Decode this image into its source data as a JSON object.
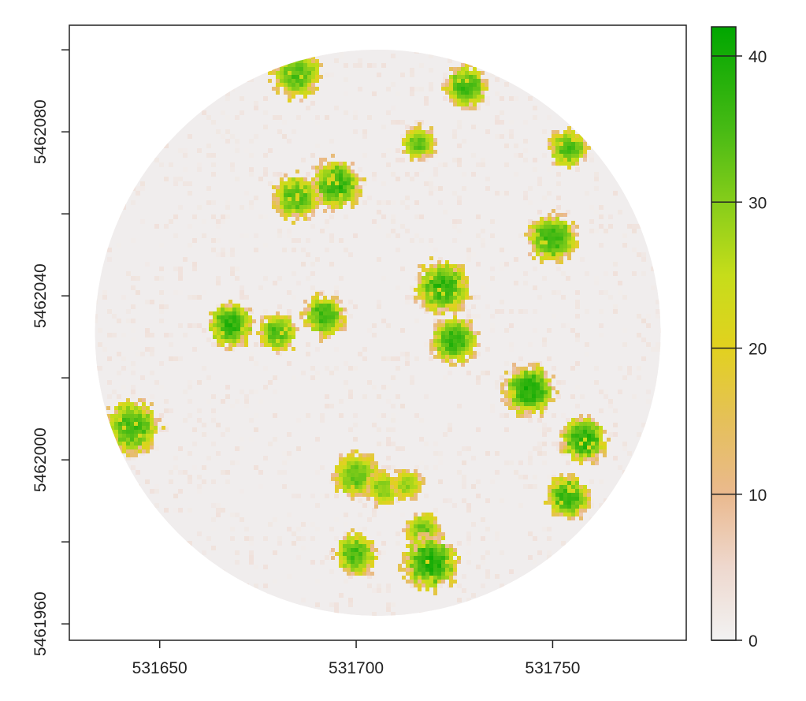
{
  "chart_data": {
    "type": "heatmap",
    "title": "",
    "xlabel": "",
    "ylabel": "",
    "xlim": [
      531627,
      531784
    ],
    "ylim": [
      5461956,
      5462106
    ],
    "x_ticks": [
      531650,
      531700,
      531750
    ],
    "y_ticks": [
      5461960,
      5462000,
      5462040,
      5462080
    ],
    "y_tick_labels": [
      "5461960",
      "5462000",
      "5462040",
      "5462080"
    ],
    "x_tick_labels": [
      "531650",
      "531700",
      "531750"
    ],
    "plot_area": {
      "shape": "circle",
      "center": [
        531705.5,
        5462031
      ],
      "radius": 72
    },
    "colorbar": {
      "min": 0,
      "max": 42,
      "ticks": [
        0,
        10,
        20,
        30,
        40
      ],
      "tick_labels": [
        "0",
        "10",
        "20",
        "30",
        "40"
      ],
      "colors": [
        {
          "stop": 0,
          "color": "#f2f2f2"
        },
        {
          "stop": 5,
          "color": "#eed8ce"
        },
        {
          "stop": 10,
          "color": "#eab98e"
        },
        {
          "stop": 15,
          "color": "#e5c05a"
        },
        {
          "stop": 20,
          "color": "#e2d11f"
        },
        {
          "stop": 25,
          "color": "#c6dd1a"
        },
        {
          "stop": 30,
          "color": "#86cd1a"
        },
        {
          "stop": 35,
          "color": "#47ba14"
        },
        {
          "stop": 42,
          "color": "#00a600"
        }
      ]
    },
    "crowns": [
      {
        "x": 531685,
        "y": 5462094,
        "r": 6.5,
        "h": 35
      },
      {
        "x": 531728,
        "y": 5462091,
        "r": 5.5,
        "h": 37
      },
      {
        "x": 531716,
        "y": 5462077,
        "r": 4.5,
        "h": 34
      },
      {
        "x": 531754,
        "y": 5462076,
        "r": 5.0,
        "h": 36
      },
      {
        "x": 531695,
        "y": 5462067,
        "r": 6.5,
        "h": 38
      },
      {
        "x": 531685,
        "y": 5462064,
        "r": 6.0,
        "h": 36
      },
      {
        "x": 531750,
        "y": 5462054,
        "r": 6.5,
        "h": 37
      },
      {
        "x": 531722,
        "y": 5462042,
        "r": 7.0,
        "h": 38
      },
      {
        "x": 531692,
        "y": 5462035,
        "r": 5.5,
        "h": 37
      },
      {
        "x": 531668,
        "y": 5462033,
        "r": 6.0,
        "h": 38
      },
      {
        "x": 531680,
        "y": 5462031,
        "r": 5.0,
        "h": 36
      },
      {
        "x": 531725,
        "y": 5462029,
        "r": 6.0,
        "h": 38
      },
      {
        "x": 531744,
        "y": 5462017,
        "r": 6.5,
        "h": 40
      },
      {
        "x": 531643,
        "y": 5462008,
        "r": 7.0,
        "h": 37
      },
      {
        "x": 531758,
        "y": 5462005,
        "r": 6.0,
        "h": 39
      },
      {
        "x": 531700,
        "y": 5461996,
        "r": 6.0,
        "h": 34
      },
      {
        "x": 531707,
        "y": 5461993,
        "r": 4.5,
        "h": 32
      },
      {
        "x": 531713,
        "y": 5461994,
        "r": 4.0,
        "h": 30
      },
      {
        "x": 531754,
        "y": 5461991,
        "r": 5.5,
        "h": 38
      },
      {
        "x": 531717,
        "y": 5461983,
        "r": 4.5,
        "h": 33
      },
      {
        "x": 531700,
        "y": 5461977,
        "r": 5.5,
        "h": 36
      },
      {
        "x": 531719,
        "y": 5461975,
        "r": 7.0,
        "h": 40
      }
    ]
  }
}
